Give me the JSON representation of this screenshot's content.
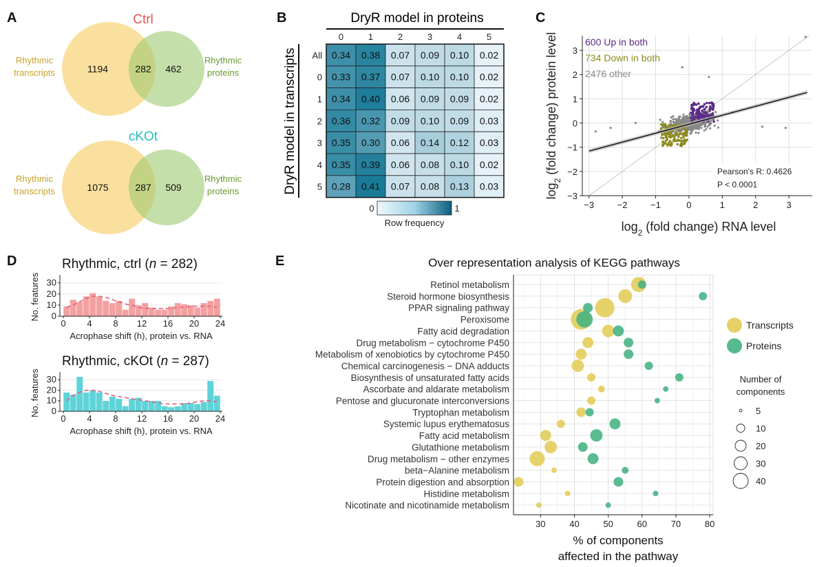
{
  "chart_data": [
    {
      "panel": "A",
      "type": "venn",
      "diagrams": [
        {
          "title": "Ctrl",
          "title_color": "#e5534b",
          "left_label": [
            "Rhythmic",
            "transcripts"
          ],
          "right_label": [
            "Rhythmic",
            "proteins"
          ],
          "left_only": "1194",
          "overlap": "282",
          "right_only": "462"
        },
        {
          "title": "cKOt",
          "title_color": "#27bcc0",
          "left_label": [
            "Rhythmic",
            "transcripts"
          ],
          "right_label": [
            "Rhythmic",
            "proteins"
          ],
          "left_only": "1075",
          "overlap": "287",
          "right_only": "509"
        }
      ]
    },
    {
      "panel": "B",
      "type": "heatmap",
      "title": "DryR model in proteins",
      "ylabel": "DryR model in transcripts",
      "columns": [
        "0",
        "1",
        "2",
        "3",
        "4",
        "5"
      ],
      "rows": [
        "All",
        "0",
        "1",
        "2",
        "3",
        "4",
        "5"
      ],
      "values": [
        [
          "0.34",
          "0.38",
          "0.07",
          "0.09",
          "0.10",
          "0.02"
        ],
        [
          "0.33",
          "0.37",
          "0.07",
          "0.10",
          "0.10",
          "0.02"
        ],
        [
          "0.34",
          "0.40",
          "0.06",
          "0.09",
          "0.09",
          "0.02"
        ],
        [
          "0.36",
          "0.32",
          "0.09",
          "0.10",
          "0.09",
          "0.03"
        ],
        [
          "0.35",
          "0.30",
          "0.06",
          "0.14",
          "0.12",
          "0.03"
        ],
        [
          "0.35",
          "0.39",
          "0.06",
          "0.08",
          "0.10",
          "0.02"
        ],
        [
          "0.28",
          "0.41",
          "0.07",
          "0.08",
          "0.13",
          "0.03"
        ]
      ],
      "colorbar": {
        "min_label": "0",
        "max_label": "1",
        "title": "Row frequency"
      }
    },
    {
      "panel": "C",
      "type": "scatter",
      "xlabel": "log2 (fold change) RNA level",
      "ylabel": "log2 (fold change) protein level",
      "xlim": [
        -3.2,
        3.7
      ],
      "ylim": [
        -3,
        3.6
      ],
      "xticks": [
        "-3",
        "-2",
        "-1",
        "0",
        "1",
        "2",
        "3"
      ],
      "yticks": [
        "-3",
        "-2",
        "-1",
        "0",
        "1",
        "2",
        "3"
      ],
      "legend": [
        "600 Up in both",
        "734 Down in both",
        "2476 other"
      ],
      "colors": {
        "up": "#5b2a86",
        "down": "#8c8a1e",
        "other": "#888888"
      },
      "regression": {
        "slope": 0.37,
        "intercept": -0.05
      },
      "stats": {
        "r_label": "Pearson's R: 0.4626",
        "p_label": "P < 0.0001"
      },
      "outliers": [
        [
          3.5,
          3.55
        ],
        [
          0.6,
          1.9
        ],
        [
          0.8,
          0.45
        ],
        [
          1.3,
          0.45
        ],
        [
          -1.6,
          0.0
        ],
        [
          -2.8,
          -0.35
        ],
        [
          -2.35,
          -0.2
        ],
        [
          2.9,
          -0.2
        ],
        [
          -0.2,
          2.3
        ],
        [
          2.2,
          -0.15
        ]
      ]
    },
    {
      "panel": "D",
      "type": "bar",
      "xlabel": "Acrophase shift (h), protein vs. RNA",
      "ylabel": "No. features",
      "xticks": [
        "0",
        "4",
        "8",
        "12",
        "16",
        "20",
        "24"
      ],
      "yticks": [
        "0",
        "10",
        "20",
        "30"
      ],
      "ylim": [
        0,
        36
      ],
      "series": [
        {
          "name": "ctrl",
          "title_pre": "Rhythmic, ctrl (",
          "title_n": "n",
          "title_post": " = 282)",
          "color": "#f4a0a0",
          "values": [
            9,
            15,
            13,
            18,
            21,
            18,
            14,
            12,
            14,
            6,
            16,
            10,
            12,
            8,
            6,
            6,
            9,
            12,
            11,
            10,
            8,
            12,
            14,
            16
          ],
          "trend": [
            8,
            10,
            13,
            16,
            18,
            18,
            17,
            15,
            13,
            11,
            10,
            8,
            7,
            7,
            7,
            7,
            7,
            8,
            8,
            9,
            9,
            9,
            9,
            8
          ]
        },
        {
          "name": "cKOt",
          "title_pre": "Rhythmic, cKOt (",
          "title_n": "n",
          "title_post": " = 287)",
          "color": "#5fd3d8",
          "values": [
            18,
            16,
            33,
            18,
            20,
            18,
            10,
            14,
            12,
            5,
            12,
            13,
            10,
            10,
            10,
            5,
            4,
            5,
            8,
            8,
            7,
            9,
            29,
            15
          ],
          "trend": [
            10,
            15,
            18,
            20,
            20,
            19,
            17,
            15,
            14,
            13,
            12,
            11,
            10,
            9,
            8,
            7,
            7,
            7,
            7,
            8,
            9,
            10,
            10,
            9
          ]
        }
      ]
    },
    {
      "panel": "E",
      "type": "scatter",
      "title": "Over representation analysis of KEGG pathways",
      "xlabel": [
        "% of components",
        "affected in the pathway"
      ],
      "xlim": [
        22,
        81
      ],
      "xticks": [
        "30",
        "40",
        "50",
        "60",
        "70",
        "80"
      ],
      "categories": [
        "Retinol metabolism",
        "Steroid hormone biosynthesis",
        "PPAR signaling pathway",
        "Peroxisome",
        "Fatty acid degradation",
        "Drug metabolism − cytochrome P450",
        "Metabolism of xenobiotics by cytochrome P450",
        "Chemical carcinogenesis − DNA adducts",
        "Biosynthesis of unsaturated fatty acids",
        "Ascorbate and aldarate metabolism",
        "Pentose and glucuronate interconversions",
        "Tryptophan metabolism",
        "Systemic lupus erythematosus",
        "Fatty acid metabolism",
        "Glutathione metabolism",
        "Drug metabolism − other enzymes",
        "beta−Alanine metabolism",
        "Protein digestion and absorption",
        "Histidine metabolism",
        "Nicotinate and nicotinamide metabolism"
      ],
      "series": [
        {
          "name": "Transcripts",
          "color": "#e3cc57",
          "x": [
            59,
            55,
            49,
            42,
            50,
            44,
            42,
            41,
            45,
            48,
            45,
            42,
            36,
            31.5,
            33,
            29,
            34,
            23.5,
            38,
            29.5
          ],
          "size": [
            22,
            20,
            28,
            30,
            18,
            16,
            16,
            18,
            12,
            10,
            12,
            14,
            12,
            16,
            18,
            22,
            8,
            14,
            8,
            8
          ]
        },
        {
          "name": "Proteins",
          "color": "#44b282",
          "x": [
            60,
            78,
            44,
            43,
            53,
            56,
            56,
            62,
            71,
            67,
            64.5,
            44.5,
            52,
            46.5,
            42.5,
            45.5,
            55,
            53,
            64,
            50
          ],
          "size": [
            12,
            12,
            14,
            24,
            16,
            14,
            14,
            12,
            12,
            8,
            8,
            12,
            16,
            18,
            14,
            16,
            10,
            14,
            8,
            8
          ]
        }
      ],
      "size_legend": {
        "title": [
          "Number of",
          "components"
        ],
        "labels": [
          "5",
          "10",
          "20",
          "30",
          "40"
        ]
      }
    }
  ]
}
